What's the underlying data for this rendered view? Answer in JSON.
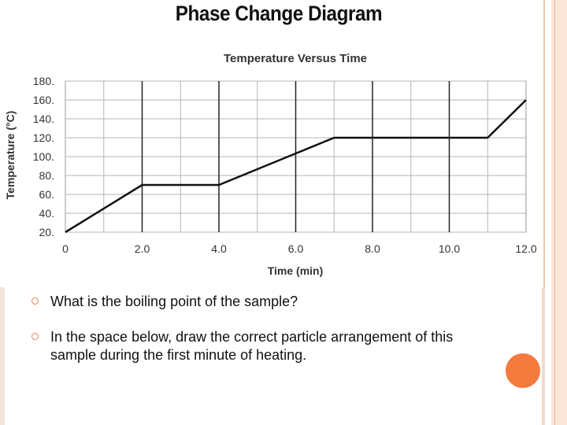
{
  "slide": {
    "title": "Phase Change Diagram",
    "accent_color": "#f47a3e",
    "bullets": [
      "What is the boiling point of the sample?",
      "In the space below, draw the correct particle arrangement of this sample during the first minute of heating."
    ]
  },
  "chart_data": {
    "type": "line",
    "title": "Temperature Versus Time",
    "xlabel": "Time (min)",
    "ylabel": "Temperature (°C)",
    "xlim": [
      0,
      12
    ],
    "ylim": [
      20,
      180
    ],
    "x_ticks": [
      "0",
      "2.0",
      "4.0",
      "6.0",
      "8.0",
      "10.0",
      "12.0"
    ],
    "y_ticks": [
      "20.",
      "40.",
      "60.",
      "80.",
      "100.",
      "120.",
      "140.",
      "160.",
      "180."
    ],
    "grid": true,
    "series": [
      {
        "x": [
          0,
          2,
          4,
          7,
          11,
          12
        ],
        "y": [
          20,
          70,
          70,
          120,
          120,
          160
        ]
      }
    ]
  }
}
